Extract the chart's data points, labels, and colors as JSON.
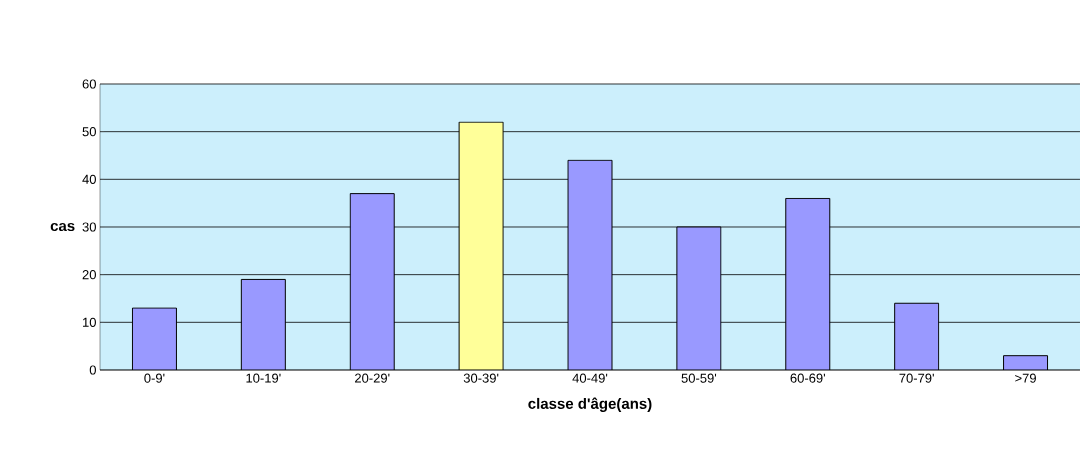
{
  "chart_data": {
    "type": "bar",
    "xlabel": "classe d'âge(ans)",
    "ylabel": "cas",
    "categories": [
      "0-9'",
      "10-19'",
      "20-29'",
      "30-39'",
      "40-49'",
      "50-59'",
      "60-69'",
      "70-79'",
      ">79"
    ],
    "values": [
      13,
      19,
      37,
      52,
      44,
      30,
      36,
      14,
      3
    ],
    "colors": [
      "#9999ff",
      "#9999ff",
      "#9999ff",
      "#ffff99",
      "#9999ff",
      "#9999ff",
      "#9999ff",
      "#9999ff",
      "#9999ff"
    ],
    "ylim": [
      0,
      60
    ],
    "yticks": [
      0,
      10,
      20,
      30,
      40,
      50,
      60
    ],
    "grid": "y"
  }
}
